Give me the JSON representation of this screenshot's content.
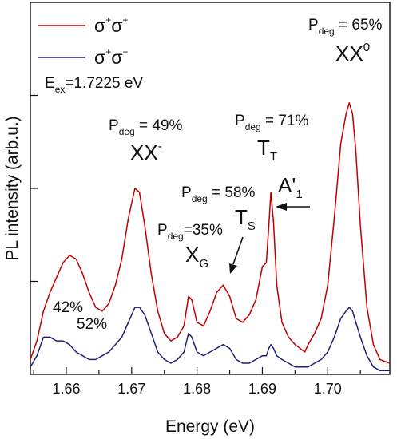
{
  "chart_data": {
    "type": "line",
    "xlabel": "Energy (eV)",
    "ylabel": "PL intensity (arb.u.)",
    "xlim": [
      1.6545,
      1.7095
    ],
    "ylim": [
      0,
      1.0
    ],
    "x_ticks": [
      {
        "value": 1.66,
        "label": "1.66"
      },
      {
        "value": 1.67,
        "label": "1.67"
      },
      {
        "value": 1.68,
        "label": "1.68"
      },
      {
        "value": 1.69,
        "label": "1.69"
      },
      {
        "value": 1.7,
        "label": "1.70"
      }
    ],
    "y_ticks": [
      0.25,
      0.5,
      0.75
    ],
    "grid": false,
    "legend_position": "top-left",
    "series": [
      {
        "name_parts": [
          "σ",
          "+",
          "σ",
          "+"
        ],
        "color": "#c00000",
        "points": [
          [
            1.6545,
            0.04
          ],
          [
            1.6555,
            0.09
          ],
          [
            1.6565,
            0.17
          ],
          [
            1.6575,
            0.22
          ],
          [
            1.6585,
            0.26
          ],
          [
            1.6595,
            0.3
          ],
          [
            1.6605,
            0.32
          ],
          [
            1.6615,
            0.31
          ],
          [
            1.6625,
            0.27
          ],
          [
            1.6635,
            0.22
          ],
          [
            1.6645,
            0.18
          ],
          [
            1.6655,
            0.17
          ],
          [
            1.6665,
            0.19
          ],
          [
            1.6675,
            0.24
          ],
          [
            1.6685,
            0.31
          ],
          [
            1.6695,
            0.42
          ],
          [
            1.6705,
            0.5
          ],
          [
            1.6712,
            0.49
          ],
          [
            1.672,
            0.4
          ],
          [
            1.673,
            0.27
          ],
          [
            1.674,
            0.17
          ],
          [
            1.675,
            0.11
          ],
          [
            1.676,
            0.09
          ],
          [
            1.677,
            0.1
          ],
          [
            1.678,
            0.13
          ],
          [
            1.6787,
            0.21
          ],
          [
            1.6792,
            0.2
          ],
          [
            1.68,
            0.14
          ],
          [
            1.681,
            0.13
          ],
          [
            1.682,
            0.17
          ],
          [
            1.683,
            0.22
          ],
          [
            1.684,
            0.24
          ],
          [
            1.685,
            0.21
          ],
          [
            1.686,
            0.15
          ],
          [
            1.687,
            0.14
          ],
          [
            1.688,
            0.16
          ],
          [
            1.689,
            0.2
          ],
          [
            1.69,
            0.29
          ],
          [
            1.6906,
            0.3
          ],
          [
            1.691,
            0.4
          ],
          [
            1.6913,
            0.49
          ],
          [
            1.6917,
            0.41
          ],
          [
            1.6922,
            0.24
          ],
          [
            1.693,
            0.14
          ],
          [
            1.694,
            0.1
          ],
          [
            1.695,
            0.08
          ],
          [
            1.6965,
            0.06
          ],
          [
            1.697,
            0.08
          ],
          [
            1.698,
            0.11
          ],
          [
            1.699,
            0.15
          ],
          [
            1.7,
            0.24
          ],
          [
            1.701,
            0.42
          ],
          [
            1.702,
            0.62
          ],
          [
            1.7028,
            0.7
          ],
          [
            1.7033,
            0.73
          ],
          [
            1.7038,
            0.7
          ],
          [
            1.7043,
            0.6
          ],
          [
            1.705,
            0.4
          ],
          [
            1.706,
            0.18
          ],
          [
            1.707,
            0.08
          ],
          [
            1.708,
            0.04
          ],
          [
            1.7095,
            0.03
          ]
        ]
      },
      {
        "name_parts": [
          "σ",
          "+",
          "σ",
          "−"
        ],
        "color": "#1f1f7a",
        "points": [
          [
            1.6545,
            0.02
          ],
          [
            1.6555,
            0.05
          ],
          [
            1.6565,
            0.1
          ],
          [
            1.6575,
            0.1
          ],
          [
            1.6585,
            0.09
          ],
          [
            1.6595,
            0.09
          ],
          [
            1.6605,
            0.08
          ],
          [
            1.6615,
            0.06
          ],
          [
            1.6625,
            0.05
          ],
          [
            1.6635,
            0.04
          ],
          [
            1.6645,
            0.04
          ],
          [
            1.6655,
            0.05
          ],
          [
            1.6665,
            0.06
          ],
          [
            1.6675,
            0.08
          ],
          [
            1.6685,
            0.1
          ],
          [
            1.6695,
            0.14
          ],
          [
            1.6705,
            0.18
          ],
          [
            1.6712,
            0.18
          ],
          [
            1.672,
            0.16
          ],
          [
            1.673,
            0.11
          ],
          [
            1.674,
            0.06
          ],
          [
            1.675,
            0.04
          ],
          [
            1.676,
            0.03
          ],
          [
            1.677,
            0.04
          ],
          [
            1.678,
            0.06
          ],
          [
            1.6787,
            0.11
          ],
          [
            1.6792,
            0.1
          ],
          [
            1.68,
            0.06
          ],
          [
            1.681,
            0.05
          ],
          [
            1.682,
            0.06
          ],
          [
            1.683,
            0.07
          ],
          [
            1.684,
            0.08
          ],
          [
            1.685,
            0.07
          ],
          [
            1.686,
            0.04
          ],
          [
            1.687,
            0.03
          ],
          [
            1.688,
            0.03
          ],
          [
            1.689,
            0.04
          ],
          [
            1.69,
            0.05
          ],
          [
            1.6906,
            0.05
          ],
          [
            1.691,
            0.07
          ],
          [
            1.6913,
            0.08
          ],
          [
            1.6917,
            0.07
          ],
          [
            1.6922,
            0.05
          ],
          [
            1.693,
            0.04
          ],
          [
            1.694,
            0.03
          ],
          [
            1.695,
            0.02
          ],
          [
            1.6965,
            0.02
          ],
          [
            1.697,
            0.02
          ],
          [
            1.698,
            0.03
          ],
          [
            1.699,
            0.04
          ],
          [
            1.7,
            0.06
          ],
          [
            1.701,
            0.1
          ],
          [
            1.702,
            0.15
          ],
          [
            1.7028,
            0.17
          ],
          [
            1.7033,
            0.18
          ],
          [
            1.7038,
            0.17
          ],
          [
            1.7043,
            0.14
          ],
          [
            1.705,
            0.1
          ],
          [
            1.706,
            0.05
          ],
          [
            1.707,
            0.02
          ],
          [
            1.708,
            0.01
          ],
          [
            1.7095,
            0.01
          ]
        ]
      }
    ],
    "annotations": {
      "excitation": {
        "base": "E",
        "sub": "ex",
        "rest": "=1.7225 eV"
      },
      "pdeg_xx0": {
        "base": "P",
        "sub": "deg",
        "rest": " = 65%"
      },
      "label_xx0": {
        "base": "XX",
        "sup": "0"
      },
      "pdeg_xxm": {
        "base": "P",
        "sub": "deg",
        "rest": " = 49%"
      },
      "label_xxm": {
        "base": "XX",
        "sup": "-"
      },
      "pdeg_tt": {
        "base": "P",
        "sub": "deg",
        "rest": " = 71%"
      },
      "label_tt": {
        "base": "T",
        "sub": "T"
      },
      "label_a1": {
        "base": "A'",
        "sub": "1"
      },
      "pdeg_ts": {
        "base": "P",
        "sub": "deg",
        "rest": " = 58%"
      },
      "label_ts": {
        "base": "T",
        "sub": "S"
      },
      "pdeg_xg": {
        "base": "P",
        "sub": "deg",
        "rest": "=35%"
      },
      "label_xg": {
        "base": "X",
        "sub": "G"
      },
      "pct_42": "42%",
      "pct_52": "52%"
    }
  }
}
